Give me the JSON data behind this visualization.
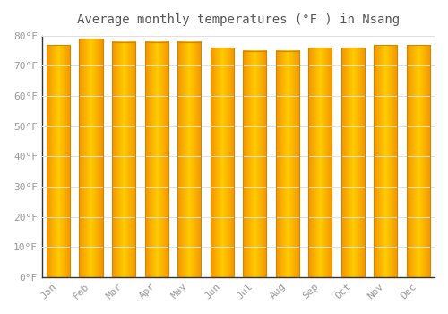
{
  "title": "Average monthly temperatures (°F ) in Nsang",
  "months": [
    "Jan",
    "Feb",
    "Mar",
    "Apr",
    "May",
    "Jun",
    "Jul",
    "Aug",
    "Sep",
    "Oct",
    "Nov",
    "Dec"
  ],
  "values": [
    77,
    79,
    78,
    78,
    78,
    76,
    75,
    75,
    76,
    76,
    77,
    77
  ],
  "bar_color_center": "#FFCC00",
  "bar_color_edge": "#F59400",
  "background_color": "#FFFFFF",
  "plot_bg_color": "#FFFFFF",
  "ylim": [
    0,
    80
  ],
  "yticks": [
    0,
    10,
    20,
    30,
    40,
    50,
    60,
    70,
    80
  ],
  "ytick_labels": [
    "0°F",
    "10°F",
    "20°F",
    "30°F",
    "40°F",
    "50°F",
    "60°F",
    "70°F",
    "80°F"
  ],
  "grid_color": "#E0E0E0",
  "text_color": "#999999",
  "title_color": "#555555",
  "bar_outline_color": "#CC8800",
  "bar_width": 0.72
}
